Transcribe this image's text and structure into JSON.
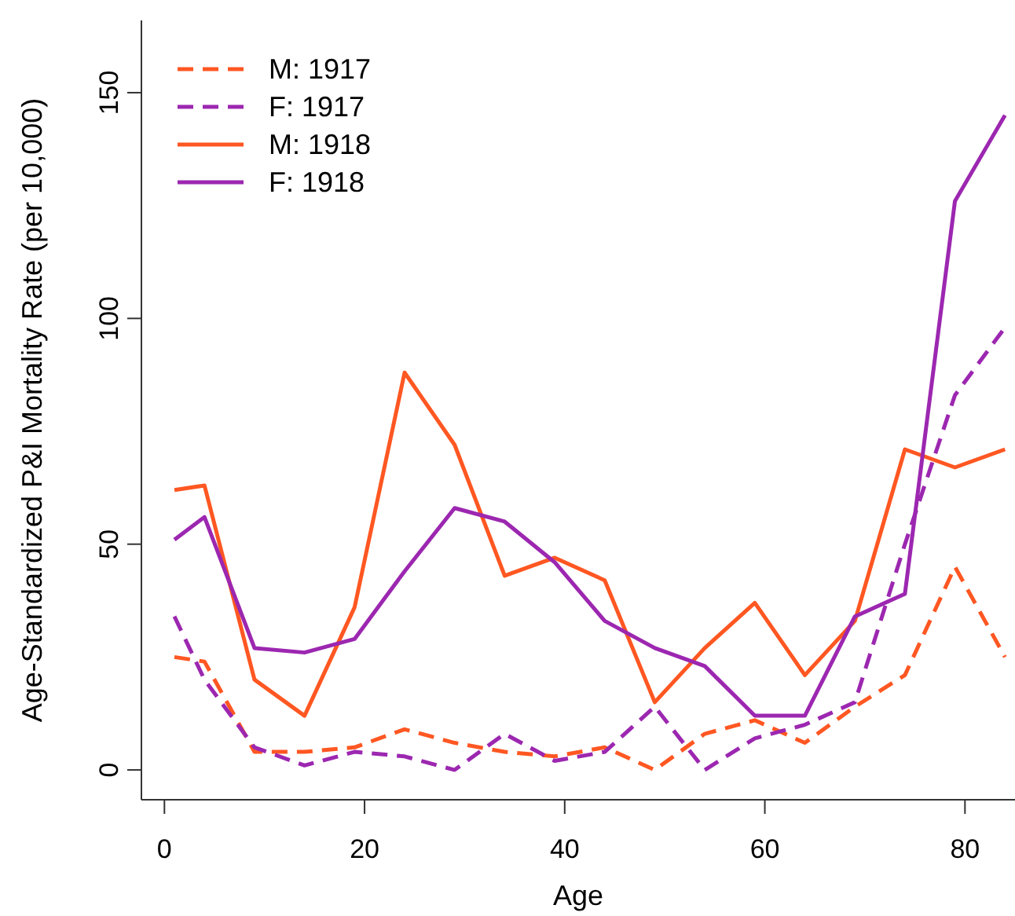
{
  "chart_data": {
    "type": "line",
    "xlabel": "Age",
    "ylabel": "Age-Standardized P&I Mortality Rate (per 10,000)",
    "x": [
      1,
      4,
      9,
      14,
      19,
      24,
      29,
      34,
      39,
      44,
      49,
      54,
      59,
      64,
      69,
      74,
      79,
      84
    ],
    "series": [
      {
        "name": "M: 1917",
        "color": "#ff5722",
        "line_style": "dashed",
        "values": [
          25,
          24,
          4,
          4,
          5,
          9,
          6,
          4,
          3,
          5,
          0,
          8,
          11,
          6,
          14,
          21,
          45,
          25
        ]
      },
      {
        "name": "F: 1917",
        "color": "#9c27b0",
        "line_style": "dashed",
        "values": [
          34,
          20,
          5,
          1,
          4,
          3,
          0,
          8,
          2,
          4,
          14,
          0,
          7,
          10,
          15,
          50,
          83,
          98
        ]
      },
      {
        "name": "M: 1918",
        "color": "#ff5722",
        "line_style": "solid",
        "values": [
          62,
          63,
          20,
          12,
          36,
          88,
          72,
          43,
          47,
          42,
          15,
          27,
          37,
          21,
          33,
          71,
          67,
          71
        ]
      },
      {
        "name": "F: 1918",
        "color": "#9c27b0",
        "line_style": "solid",
        "values": [
          51,
          56,
          27,
          26,
          29,
          44,
          58,
          55,
          46,
          33,
          27,
          23,
          12,
          12,
          34,
          39,
          126,
          145
        ]
      }
    ],
    "xlim": [
      -2.3,
      85
    ],
    "xticks": [
      0,
      20,
      40,
      60,
      80
    ],
    "ylim": [
      -6.6,
      166
    ],
    "yticks": [
      0,
      50,
      100,
      150
    ],
    "grid": false,
    "legend": "top left",
    "marker": "none"
  }
}
